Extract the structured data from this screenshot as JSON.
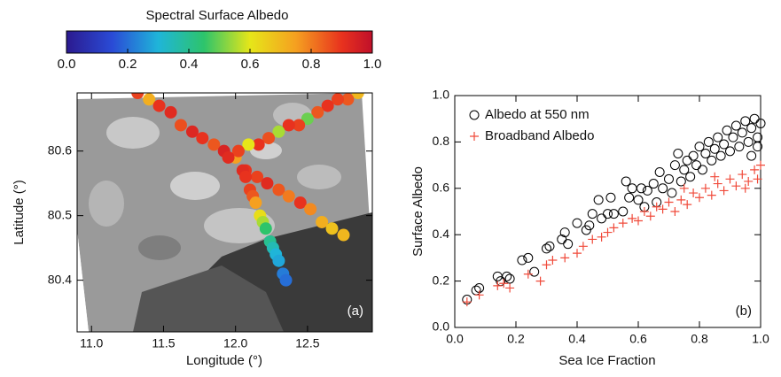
{
  "chart_data": [
    {
      "type": "map",
      "colorbar": {
        "title": "Spectral Surface Albedo",
        "colormap": "rainbow",
        "lim": [
          0,
          1
        ],
        "ticks": [
          {
            "value": 0,
            "label": "0.0"
          },
          0.2,
          0.4,
          0.6,
          0.8,
          {
            "value": 1,
            "label": "1.0"
          }
        ]
      },
      "xlabel": "Longitude (°)",
      "ylabel": "Latitude (°)",
      "panel_label": "(a)",
      "xlim": [
        10.9,
        12.95
      ],
      "ylim": [
        80.32,
        80.69
      ],
      "xticks": [
        {
          "value": 11,
          "label": "11.0"
        },
        11.5,
        {
          "value": 12,
          "label": "12.0"
        },
        12.5
      ],
      "yticks": [
        80.4,
        80.5,
        80.6
      ],
      "x": [
        11.32,
        11.4,
        11.47,
        11.55,
        11.62,
        11.7,
        11.77,
        11.85,
        11.92,
        12.0,
        12.07,
        12.15,
        12.22,
        12.3,
        12.37,
        12.45,
        12.52,
        12.6,
        12.67,
        12.75,
        12.85,
        12.78,
        12.71,
        12.64,
        12.57,
        12.5,
        12.44,
        12.37,
        12.3,
        12.23,
        12.16,
        12.09,
        12.02,
        11.95,
        12.05,
        12.07,
        12.1,
        12.12,
        12.14,
        12.17,
        12.19,
        12.21,
        12.24,
        12.26,
        12.28,
        12.3,
        12.33,
        12.35
      ],
      "y": [
        80.69,
        80.68,
        80.67,
        80.66,
        80.64,
        80.63,
        80.62,
        80.61,
        80.6,
        80.59,
        80.57,
        80.56,
        80.55,
        80.54,
        80.53,
        80.52,
        80.51,
        80.49,
        80.48,
        80.47,
        80.69,
        80.68,
        80.68,
        80.67,
        80.66,
        80.65,
        80.64,
        80.64,
        80.63,
        80.62,
        80.61,
        80.61,
        80.6,
        80.59,
        80.57,
        80.56,
        80.54,
        80.53,
        80.52,
        80.5,
        80.49,
        80.48,
        80.46,
        80.45,
        80.44,
        80.43,
        80.41,
        80.4
      ],
      "values": [
        0.88,
        0.72,
        0.9,
        0.92,
        0.86,
        0.93,
        0.9,
        0.85,
        0.94,
        0.75,
        0.9,
        0.88,
        0.92,
        0.85,
        0.8,
        0.9,
        0.78,
        0.72,
        0.68,
        0.7,
        0.7,
        0.85,
        0.88,
        0.9,
        0.85,
        0.5,
        0.88,
        0.9,
        0.55,
        0.86,
        0.9,
        0.6,
        0.88,
        0.92,
        0.92,
        0.9,
        0.88,
        0.85,
        0.75,
        0.62,
        0.55,
        0.45,
        0.4,
        0.35,
        0.3,
        0.28,
        0.22,
        0.2
      ]
    },
    {
      "type": "scatter",
      "xlabel": "Sea Ice Fraction",
      "ylabel": "Surface Albedo",
      "panel_label": "(b)",
      "xlim": [
        0,
        1
      ],
      "ylim": [
        0,
        1
      ],
      "xticks": [
        {
          "value": 0,
          "label": "0.0"
        },
        0.2,
        0.4,
        0.6,
        0.8,
        {
          "value": 1,
          "label": "1.0"
        }
      ],
      "yticks": [
        {
          "value": 0,
          "label": "0.0"
        },
        0.2,
        0.4,
        0.6,
        0.8,
        {
          "value": 1,
          "label": "1.0"
        }
      ],
      "legend": "upper left",
      "series": [
        {
          "name": "Albedo at 550 nm",
          "color": "#000000",
          "marker": "circle",
          "x": [
            0.04,
            0.07,
            0.08,
            0.14,
            0.15,
            0.17,
            0.18,
            0.22,
            0.24,
            0.26,
            0.3,
            0.31,
            0.35,
            0.36,
            0.37,
            0.4,
            0.43,
            0.44,
            0.45,
            0.47,
            0.48,
            0.5,
            0.51,
            0.52,
            0.55,
            0.56,
            0.57,
            0.58,
            0.6,
            0.61,
            0.62,
            0.63,
            0.65,
            0.66,
            0.67,
            0.68,
            0.7,
            0.71,
            0.72,
            0.73,
            0.74,
            0.75,
            0.76,
            0.77,
            0.78,
            0.79,
            0.8,
            0.81,
            0.82,
            0.83,
            0.84,
            0.85,
            0.86,
            0.87,
            0.88,
            0.89,
            0.9,
            0.91,
            0.92,
            0.93,
            0.94,
            0.95,
            0.96,
            0.97,
            0.98,
            0.99,
            1.0,
            0.97,
            0.99
          ],
          "values": [
            0.12,
            0.16,
            0.17,
            0.22,
            0.2,
            0.22,
            0.21,
            0.29,
            0.3,
            0.24,
            0.34,
            0.35,
            0.38,
            0.41,
            0.36,
            0.45,
            0.42,
            0.44,
            0.49,
            0.55,
            0.47,
            0.49,
            0.56,
            0.49,
            0.5,
            0.63,
            0.56,
            0.6,
            0.55,
            0.6,
            0.52,
            0.59,
            0.62,
            0.54,
            0.67,
            0.6,
            0.64,
            0.58,
            0.7,
            0.75,
            0.63,
            0.68,
            0.72,
            0.65,
            0.74,
            0.7,
            0.78,
            0.68,
            0.75,
            0.8,
            0.72,
            0.77,
            0.82,
            0.74,
            0.79,
            0.85,
            0.76,
            0.82,
            0.87,
            0.78,
            0.84,
            0.89,
            0.8,
            0.86,
            0.9,
            0.82,
            0.88,
            0.74,
            0.78
          ]
        },
        {
          "name": "Broadband Albedo",
          "color": "#f04a3a",
          "marker": "plus",
          "x": [
            0.04,
            0.08,
            0.14,
            0.16,
            0.18,
            0.24,
            0.28,
            0.3,
            0.32,
            0.36,
            0.4,
            0.42,
            0.45,
            0.48,
            0.5,
            0.52,
            0.55,
            0.58,
            0.6,
            0.62,
            0.64,
            0.66,
            0.68,
            0.7,
            0.72,
            0.74,
            0.76,
            0.78,
            0.8,
            0.82,
            0.84,
            0.86,
            0.88,
            0.9,
            0.92,
            0.94,
            0.96,
            0.98,
            1.0,
            0.99,
            0.95,
            0.85,
            0.75
          ],
          "values": [
            0.11,
            0.14,
            0.18,
            0.19,
            0.17,
            0.23,
            0.2,
            0.27,
            0.29,
            0.3,
            0.32,
            0.35,
            0.38,
            0.39,
            0.41,
            0.43,
            0.45,
            0.47,
            0.46,
            0.5,
            0.48,
            0.52,
            0.51,
            0.54,
            0.5,
            0.55,
            0.53,
            0.58,
            0.56,
            0.6,
            0.57,
            0.62,
            0.59,
            0.64,
            0.61,
            0.66,
            0.63,
            0.68,
            0.7,
            0.64,
            0.6,
            0.65,
            0.6
          ]
        }
      ]
    }
  ]
}
